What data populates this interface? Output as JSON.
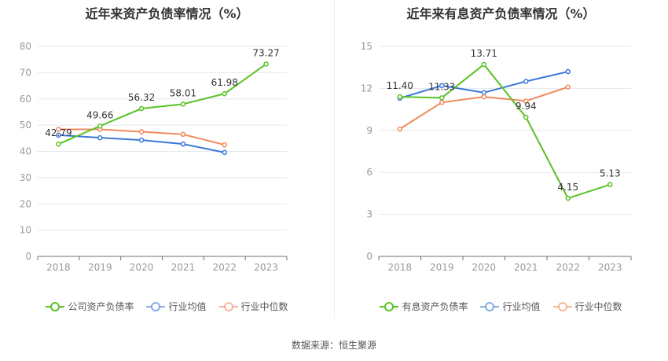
{
  "footer": {
    "source": "数据来源：恒生聚源"
  },
  "colors": {
    "company": "#5ac227",
    "avg": "#3b78d8",
    "median": "#f08a5d",
    "grid": "#e5e8f0",
    "axis": "#999999"
  },
  "chart_data": [
    {
      "type": "line",
      "title": "近年来资产负债率情况（%）",
      "categories": [
        "2018",
        "2019",
        "2020",
        "2021",
        "2022",
        "2023"
      ],
      "ylim": [
        0,
        80
      ],
      "yticks": [
        0,
        10,
        20,
        30,
        40,
        50,
        60,
        70,
        80
      ],
      "grid": true,
      "legend_position": "bottom",
      "series": [
        {
          "name": "公司资产负债率",
          "key": "company",
          "values": [
            42.79,
            49.66,
            56.32,
            58.01,
            61.98,
            73.27
          ],
          "labels": true
        },
        {
          "name": "行业均值",
          "key": "avg",
          "values": [
            46.2,
            45.2,
            44.3,
            42.8,
            39.6,
            null
          ],
          "labels": false
        },
        {
          "name": "行业中位数",
          "key": "median",
          "values": [
            48.4,
            48.4,
            47.5,
            46.5,
            42.5,
            null
          ],
          "labels": false
        }
      ]
    },
    {
      "type": "line",
      "title": "近年来有息资产负债率情况（%）",
      "categories": [
        "2018",
        "2019",
        "2020",
        "2021",
        "2022",
        "2023"
      ],
      "ylim": [
        0,
        15
      ],
      "yticks": [
        0,
        3,
        6,
        9,
        12,
        15
      ],
      "grid": true,
      "legend_position": "bottom",
      "series": [
        {
          "name": "有息资产负债率",
          "key": "company",
          "values": [
            11.4,
            11.33,
            13.71,
            9.94,
            4.15,
            5.13
          ],
          "labels": true
        },
        {
          "name": "行业均值",
          "key": "avg",
          "values": [
            11.3,
            12.2,
            11.7,
            12.5,
            13.2,
            null
          ],
          "labels": false
        },
        {
          "name": "行业中位数",
          "key": "median",
          "values": [
            9.1,
            11.0,
            11.4,
            11.1,
            12.1,
            null
          ],
          "labels": false
        }
      ]
    }
  ]
}
